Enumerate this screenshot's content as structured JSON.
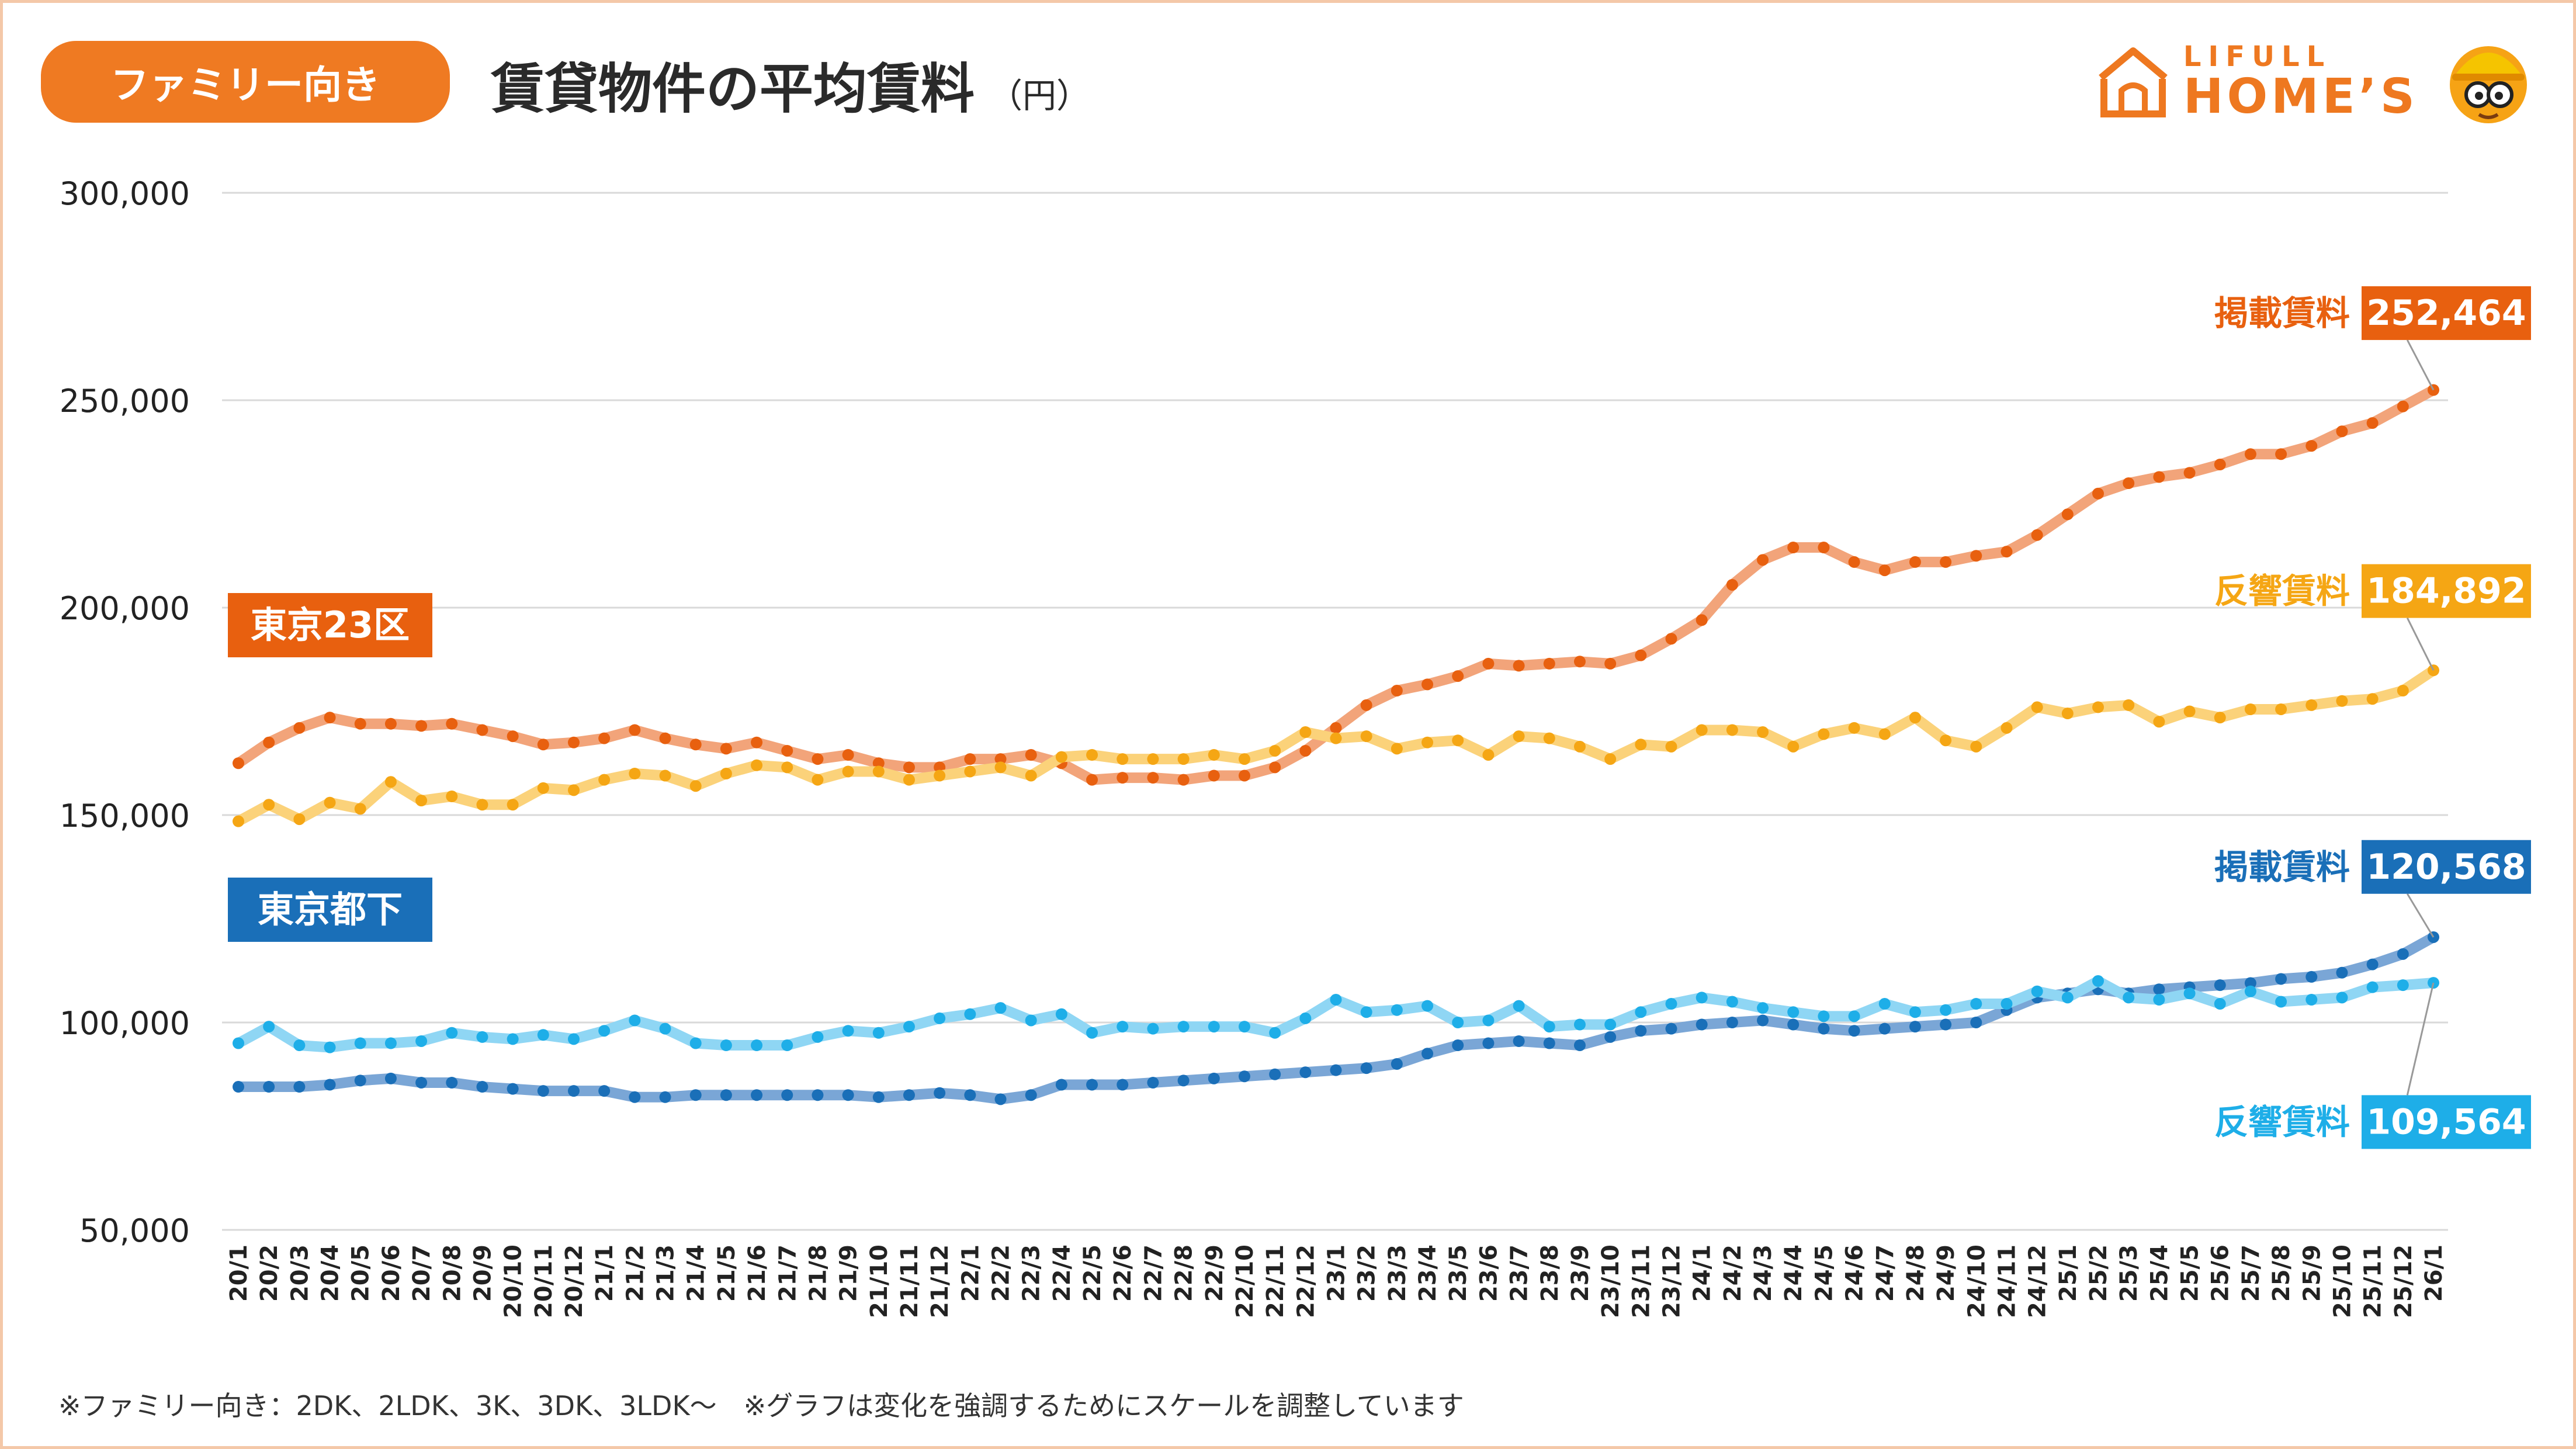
{
  "header": {
    "badge": "ファミリー向き",
    "title": "賃貸物件の平均賃料",
    "unit": "（円）"
  },
  "logo": {
    "line1": "LIFULL",
    "line2": "HOME’S",
    "icon": "house-icon",
    "mascot_icon": "mascot-icon",
    "color": "#ee7820"
  },
  "footnote": "※ファミリー向き：2DK、2LDK、3K、3DK、3LDK〜　※グラフは変化を強調するためにスケールを調整しています",
  "chart_data": {
    "type": "line",
    "title": "賃貸物件の平均賃料",
    "ylabel": "（円）",
    "ylim": [
      50000,
      300000
    ],
    "yticks": [
      50000,
      100000,
      150000,
      200000,
      250000,
      300000
    ],
    "ytick_labels": [
      "50,000",
      "100,000",
      "150,000",
      "200,000",
      "250,000",
      "300,000"
    ],
    "grid": true,
    "x": [
      "20/1",
      "20/2",
      "20/3",
      "20/4",
      "20/5",
      "20/6",
      "20/7",
      "20/8",
      "20/9",
      "20/10",
      "20/11",
      "20/12",
      "21/1",
      "21/2",
      "21/3",
      "21/4",
      "21/5",
      "21/6",
      "21/7",
      "21/8",
      "21/9",
      "21/10",
      "21/11",
      "21/12",
      "22/1",
      "22/2",
      "22/3",
      "22/4",
      "22/5",
      "22/6",
      "22/7",
      "22/8",
      "22/9",
      "22/10",
      "22/11",
      "22/12",
      "23/1",
      "23/2",
      "23/3",
      "23/4",
      "23/5",
      "23/6",
      "23/7",
      "23/8",
      "23/9",
      "23/10",
      "23/11",
      "23/12",
      "24/1",
      "24/2",
      "24/3",
      "24/4",
      "24/5",
      "24/6",
      "24/7",
      "24/8",
      "24/9",
      "24/10",
      "24/11",
      "24/12",
      "25/1",
      "25/2",
      "25/3",
      "25/4",
      "25/5",
      "25/6",
      "25/7",
      "25/8",
      "25/9",
      "25/10",
      "25/11",
      "25/12",
      "26/1"
    ],
    "groups": [
      {
        "label": "東京23区",
        "color": "#e8600f"
      },
      {
        "label": "東京都下",
        "color": "#1a6fb8"
      }
    ],
    "series": [
      {
        "name": "掲載賃料",
        "group": "東京23区",
        "color": "#e8600f",
        "line_color": "#f2a47a",
        "end_label": "252,464",
        "values": [
          162500,
          167500,
          171000,
          173500,
          172000,
          172000,
          171500,
          172000,
          170500,
          169000,
          167000,
          167500,
          168500,
          170500,
          168500,
          167000,
          166000,
          167500,
          165500,
          163500,
          164500,
          162500,
          161500,
          161500,
          163500,
          163500,
          164500,
          162500,
          158500,
          159000,
          159000,
          158500,
          159500,
          159500,
          161500,
          165500,
          171000,
          176500,
          180000,
          181500,
          183500,
          186500,
          186000,
          186500,
          187000,
          186500,
          188500,
          192500,
          197000,
          205500,
          211500,
          214500,
          214500,
          211000,
          209000,
          211000,
          211000,
          212500,
          213500,
          217500,
          222500,
          227500,
          230000,
          231500,
          232500,
          234500,
          237000,
          237000,
          239000,
          242500,
          244500,
          248500,
          252464
        ]
      },
      {
        "name": "反響賃料",
        "group": "東京23区",
        "color": "#f5a614",
        "line_color": "#fbd27a",
        "end_label": "184,892",
        "values": [
          148500,
          152500,
          149000,
          153000,
          151500,
          158000,
          153500,
          154500,
          152500,
          152500,
          156500,
          156000,
          158500,
          160000,
          159500,
          157000,
          160000,
          162000,
          161500,
          158500,
          160500,
          160500,
          158500,
          159500,
          160500,
          161500,
          159500,
          164000,
          164500,
          163500,
          163500,
          163500,
          164500,
          163500,
          165500,
          170000,
          168500,
          169000,
          166000,
          167500,
          168000,
          164500,
          169000,
          168500,
          166500,
          163500,
          167000,
          166500,
          170500,
          170500,
          170000,
          166500,
          169500,
          171000,
          169500,
          173500,
          168000,
          166500,
          171000,
          176000,
          174500,
          176000,
          176500,
          172500,
          175000,
          173500,
          175500,
          175500,
          176500,
          177500,
          178000,
          180000,
          184892
        ]
      },
      {
        "name": "掲載賃料",
        "group": "東京都下",
        "color": "#1a6fb8",
        "line_color": "#7aa6d6",
        "end_label": "120,568",
        "values": [
          84500,
          84500,
          84500,
          85000,
          86000,
          86500,
          85500,
          85500,
          84500,
          84000,
          83500,
          83500,
          83500,
          82000,
          82000,
          82500,
          82500,
          82500,
          82500,
          82500,
          82500,
          82000,
          82500,
          83000,
          82500,
          81500,
          82500,
          85000,
          85000,
          85000,
          85500,
          86000,
          86500,
          87000,
          87500,
          88000,
          88500,
          89000,
          90000,
          92500,
          94500,
          95000,
          95500,
          95000,
          94500,
          96500,
          98000,
          98500,
          99500,
          100000,
          100500,
          99500,
          98500,
          98000,
          98500,
          99000,
          99500,
          100000,
          103000,
          106000,
          107000,
          108000,
          107000,
          108000,
          108500,
          109000,
          109500,
          110500,
          111000,
          112000,
          114000,
          116500,
          120568
        ]
      },
      {
        "name": "反響賃料",
        "group": "東京都下",
        "color": "#1eaee8",
        "line_color": "#8fd6f4",
        "end_label": "109,564",
        "values": [
          95000,
          99000,
          94500,
          94000,
          95000,
          95000,
          95500,
          97500,
          96500,
          96000,
          97000,
          96000,
          98000,
          100500,
          98500,
          95000,
          94500,
          94500,
          94500,
          96500,
          98000,
          97500,
          99000,
          101000,
          102000,
          103500,
          100500,
          102000,
          97500,
          99000,
          98500,
          99000,
          99000,
          99000,
          97500,
          101000,
          105500,
          102500,
          103000,
          104000,
          100000,
          100500,
          104000,
          99000,
          99500,
          99500,
          102500,
          104500,
          106000,
          105000,
          103500,
          102500,
          101500,
          101500,
          104500,
          102500,
          103000,
          104500,
          104500,
          107500,
          106000,
          110000,
          106000,
          105500,
          107000,
          104500,
          107500,
          105000,
          105500,
          106000,
          108500,
          109000,
          109564
        ]
      }
    ],
    "annotations": [
      {
        "text": "掲載賃料",
        "value_text": "252,464",
        "color": "#e8600f"
      },
      {
        "text": "反響賃料",
        "value_text": "184,892",
        "color": "#f5a614"
      },
      {
        "text": "掲載賃料",
        "value_text": "120,568",
        "color": "#1a6fb8"
      },
      {
        "text": "反響賃料",
        "value_text": "109,564",
        "color": "#1eaee8"
      }
    ]
  }
}
